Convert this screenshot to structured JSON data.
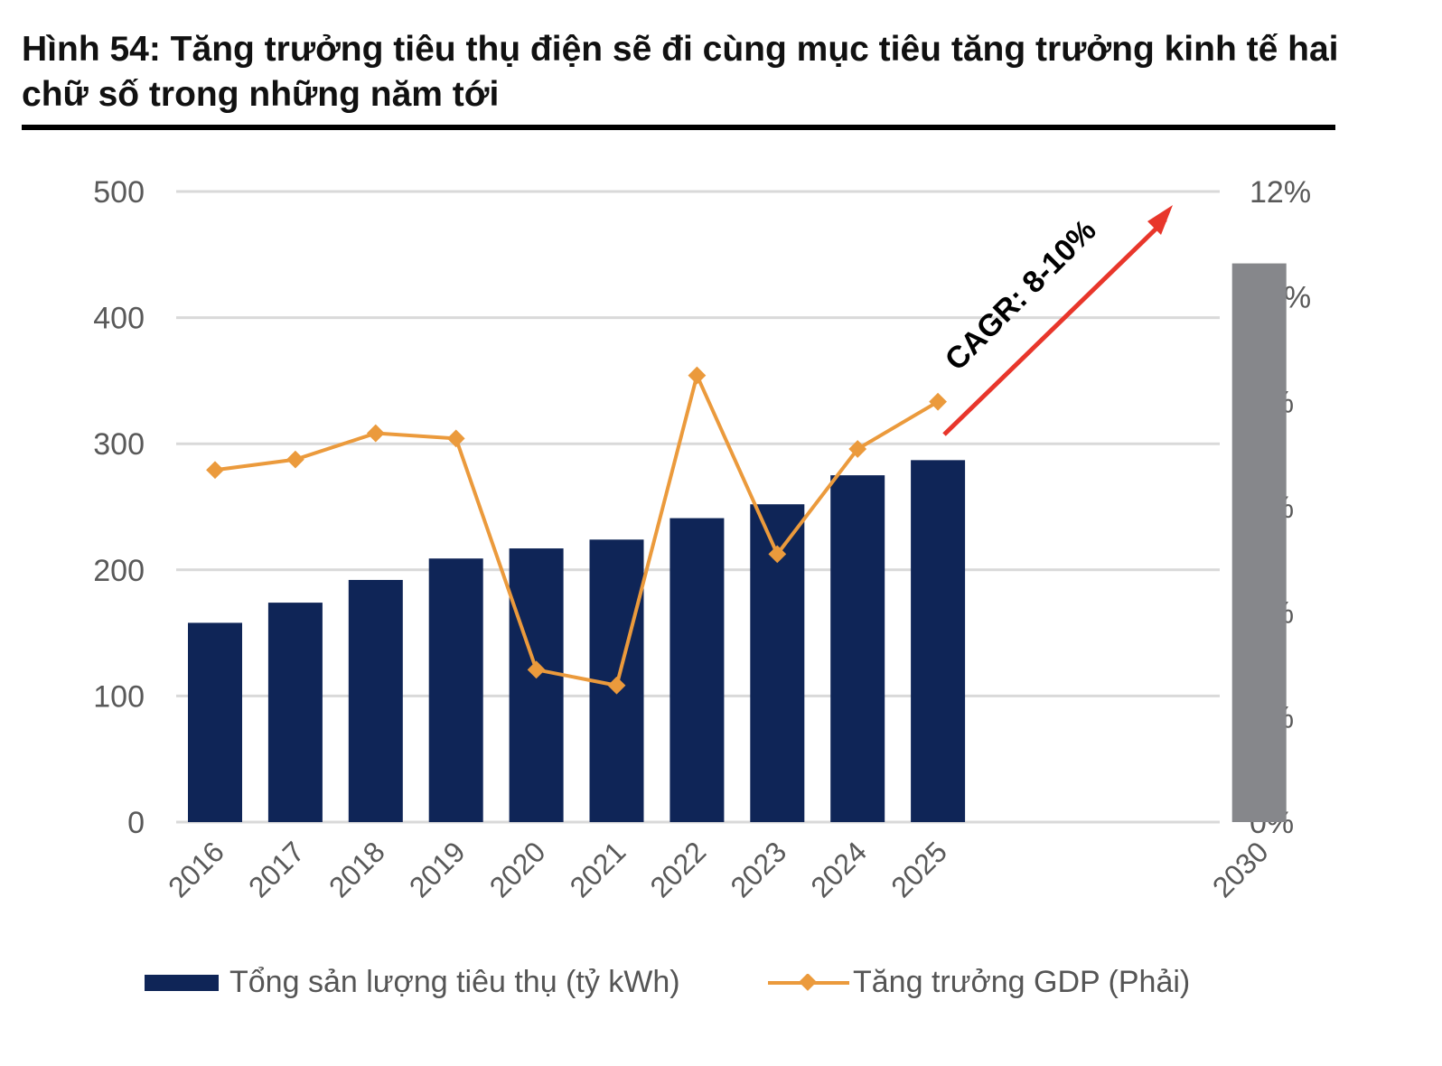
{
  "title": "Hình 54:  Tăng trưởng tiêu thụ điện sẽ đi cùng mục tiêu tăng trưởng kinh tế hai chữ số trong những năm tới",
  "chart_data": {
    "type": "bar",
    "categories": [
      "2016",
      "2017",
      "2018",
      "2019",
      "2020",
      "2021",
      "2022",
      "2023",
      "2024",
      "2025",
      "2030"
    ],
    "series": [
      {
        "name": "Tổng sản lượng tiêu thụ (tỷ kWh)",
        "type": "bar",
        "axis": "left",
        "values": [
          158,
          174,
          192,
          209,
          217,
          224,
          241,
          252,
          275,
          287,
          443
        ],
        "colors": [
          "#0f2557",
          "#0f2557",
          "#0f2557",
          "#0f2557",
          "#0f2557",
          "#0f2557",
          "#0f2557",
          "#0f2557",
          "#0f2557",
          "#0f2557",
          "#86878b"
        ]
      },
      {
        "name": "Tăng trưởng GDP (Phải)",
        "type": "line",
        "axis": "right",
        "color": "#eb9a3c",
        "values": [
          6.7,
          6.9,
          7.4,
          7.3,
          2.9,
          2.6,
          8.5,
          5.1,
          7.1,
          8.0,
          null
        ]
      }
    ],
    "left_axis": {
      "ylim": [
        0,
        500
      ],
      "ticks": [
        "0",
        "100",
        "200",
        "300",
        "400",
        "500"
      ]
    },
    "right_axis": {
      "ylim": [
        0,
        12
      ],
      "ticks": [
        "0%",
        "2%",
        "4%",
        "6%",
        "8%",
        "10%",
        "12%"
      ]
    },
    "annotation": {
      "text": "CAGR: 8-10%",
      "arrow_color": "#e8362b"
    },
    "grid": true,
    "legend": "bottom"
  }
}
